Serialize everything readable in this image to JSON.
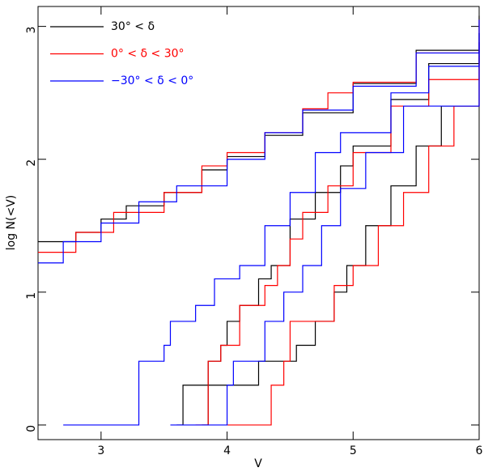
{
  "chart_data": {
    "type": "step",
    "x_label": "V",
    "y_label": "log N(<V)",
    "xlim": [
      2.5,
      6
    ],
    "ylim": [
      -0.11,
      3.15
    ],
    "xticks": [
      3,
      4,
      5,
      6
    ],
    "yticks": [
      0,
      1,
      2,
      3
    ],
    "legend": "top-left",
    "series": [
      {
        "name": "30° < δ",
        "color": "#000000",
        "lines": [
          {
            "x": [
              2.5,
              2.8,
              3.0,
              3.2,
              3.5,
              3.8,
              4.0,
              4.3,
              4.6,
              5.0,
              5.5,
              6.0
            ],
            "values": [
              1.38,
              1.45,
              1.55,
              1.65,
              1.75,
              1.92,
              2.02,
              2.18,
              2.35,
              2.57,
              2.82,
              3.08
            ]
          },
          {
            "x": [
              3.6,
              3.65,
              3.85,
              3.95,
              4.0,
              4.1,
              4.25,
              4.35,
              4.5,
              4.7,
              4.9,
              5.0,
              5.3,
              5.6,
              6.0
            ],
            "values": [
              0,
              0.3,
              0.48,
              0.6,
              0.78,
              0.9,
              1.1,
              1.2,
              1.55,
              1.75,
              1.95,
              2.1,
              2.45,
              2.72,
              2.95
            ]
          },
          {
            "x": [
              3.8,
              3.85,
              4.25,
              4.55,
              4.7,
              4.85,
              4.95,
              5.1,
              5.3,
              5.5,
              5.7,
              6.0
            ],
            "values": [
              0,
              0.3,
              0.48,
              0.6,
              0.78,
              1.0,
              1.2,
              1.5,
              1.8,
              2.1,
              2.4,
              2.82
            ]
          }
        ]
      },
      {
        "name": "0° < δ < 30°",
        "color": "#ff0000",
        "lines": [
          {
            "x": [
              2.5,
              2.8,
              3.1,
              3.5,
              3.8,
              4.0,
              4.3,
              4.6,
              4.8,
              5.0,
              5.5,
              6.0
            ],
            "values": [
              1.3,
              1.45,
              1.6,
              1.75,
              1.95,
              2.05,
              2.2,
              2.38,
              2.5,
              2.58,
              2.8,
              3.05
            ]
          },
          {
            "x": [
              3.75,
              3.85,
              3.95,
              4.1,
              4.3,
              4.4,
              4.5,
              4.6,
              4.8,
              5.0,
              5.3,
              5.6,
              6.0
            ],
            "values": [
              0,
              0.48,
              0.6,
              0.9,
              1.05,
              1.2,
              1.4,
              1.6,
              1.8,
              2.05,
              2.4,
              2.6,
              2.88
            ]
          },
          {
            "x": [
              4.0,
              4.35,
              4.45,
              4.5,
              4.85,
              5.0,
              5.2,
              5.4,
              5.6,
              5.8,
              6.0
            ],
            "values": [
              0,
              0.3,
              0.48,
              0.78,
              1.05,
              1.2,
              1.5,
              1.75,
              2.1,
              2.4,
              2.78
            ]
          }
        ]
      },
      {
        "name": "−30° < δ < 0°",
        "color": "#0000ff",
        "lines": [
          {
            "x": [
              2.5,
              2.7,
              3.0,
              3.3,
              3.6,
              4.0,
              4.3,
              4.6,
              5.0,
              5.5,
              6.0
            ],
            "values": [
              1.22,
              1.38,
              1.52,
              1.68,
              1.8,
              2.0,
              2.2,
              2.37,
              2.55,
              2.8,
              3.05
            ]
          },
          {
            "x": [
              2.7,
              3.3,
              3.5,
              3.55,
              3.75,
              3.9,
              4.1,
              4.3,
              4.5,
              4.7,
              4.9,
              5.3,
              5.6,
              6.0
            ],
            "values": [
              0,
              0.48,
              0.6,
              0.78,
              0.9,
              1.1,
              1.2,
              1.5,
              1.75,
              2.05,
              2.2,
              2.5,
              2.7,
              2.95
            ]
          },
          {
            "x": [
              3.55,
              4.0,
              4.05,
              4.3,
              4.45,
              4.6,
              4.75,
              4.9,
              5.1,
              5.4,
              6.0
            ],
            "values": [
              0,
              0.3,
              0.48,
              0.78,
              1.0,
              1.2,
              1.5,
              1.78,
              2.05,
              2.4,
              2.88
            ]
          }
        ]
      }
    ]
  }
}
